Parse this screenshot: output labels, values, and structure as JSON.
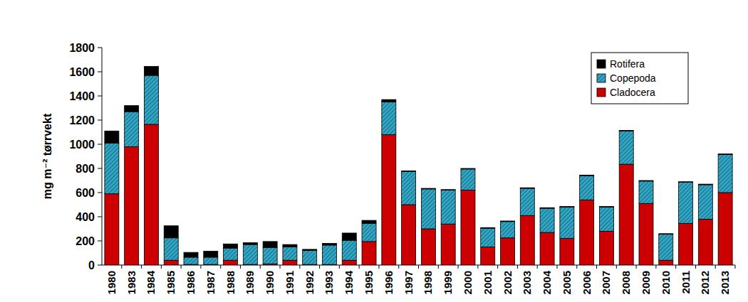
{
  "chart_data": {
    "type": "bar",
    "stacked": true,
    "legend": "upper right",
    "grid": false,
    "y_label": "mg m⁻² tørrvekt",
    "categories": [
      "1980",
      "1983",
      "1984",
      "1985",
      "1986",
      "1987",
      "1988",
      "1989",
      "1990",
      "1991",
      "1992",
      "1993",
      "1994",
      "1995",
      "1996",
      "1997",
      "1998",
      "1999",
      "2000",
      "2001",
      "2002",
      "2003",
      "2004",
      "2005",
      "2006",
      "2007",
      "2008",
      "2009",
      "2010",
      "2011",
      "2012",
      "2013"
    ],
    "ylim": [
      0,
      1800
    ],
    "yticks": [
      0,
      200,
      400,
      600,
      800,
      1000,
      1200,
      1400,
      1600,
      1800
    ],
    "series": [
      {
        "name": "Cladocera",
        "color": "#cc0000",
        "values": [
          590,
          980,
          1165,
          40,
          5,
          5,
          40,
          5,
          10,
          40,
          5,
          5,
          40,
          195,
          1080,
          500,
          300,
          340,
          620,
          150,
          225,
          410,
          270,
          220,
          540,
          280,
          835,
          510,
          40,
          345,
          380,
          600
        ]
      },
      {
        "name": "Copepoda",
        "color": "#2fa8c8",
        "values": [
          420,
          290,
          405,
          185,
          60,
          60,
          100,
          165,
          135,
          110,
          115,
          160,
          165,
          150,
          270,
          275,
          330,
          280,
          175,
          155,
          135,
          225,
          200,
          260,
          200,
          200,
          275,
          185,
          215,
          340,
          285,
          315
        ]
      },
      {
        "name": "Rotifera",
        "color": "#000000",
        "values": [
          100,
          50,
          75,
          100,
          40,
          50,
          35,
          15,
          50,
          20,
          10,
          15,
          60,
          25,
          20,
          5,
          5,
          5,
          5,
          5,
          5,
          5,
          5,
          5,
          5,
          5,
          5,
          5,
          5,
          5,
          5,
          5
        ]
      }
    ]
  }
}
